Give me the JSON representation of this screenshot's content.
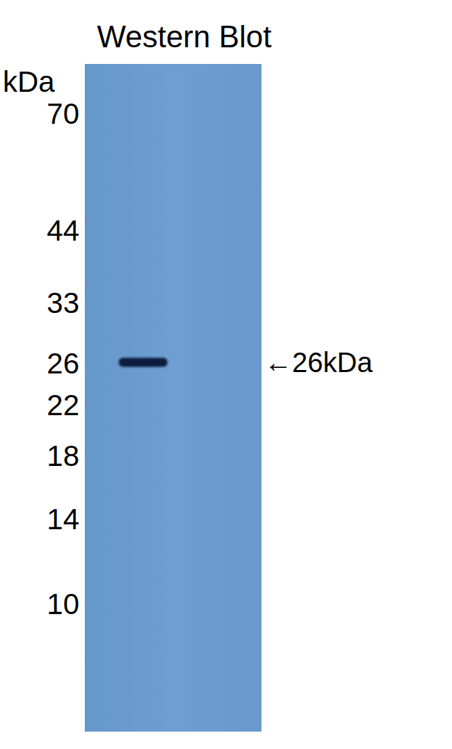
{
  "chart_data": {
    "type": "western_blot",
    "title": "Western Blot",
    "y_label": "kDa",
    "log": "y",
    "ylim": [
      6,
      85
    ],
    "yticks": [
      70,
      44,
      33,
      26,
      22,
      18,
      14,
      10
    ],
    "categories": [
      null
    ],
    "values": [
      26
    ],
    "color": "#0d1b3e",
    "tick_labels": "y",
    "annotations": [
      {
        "text": "←26kDa",
        "value": 26
      }
    ]
  }
}
